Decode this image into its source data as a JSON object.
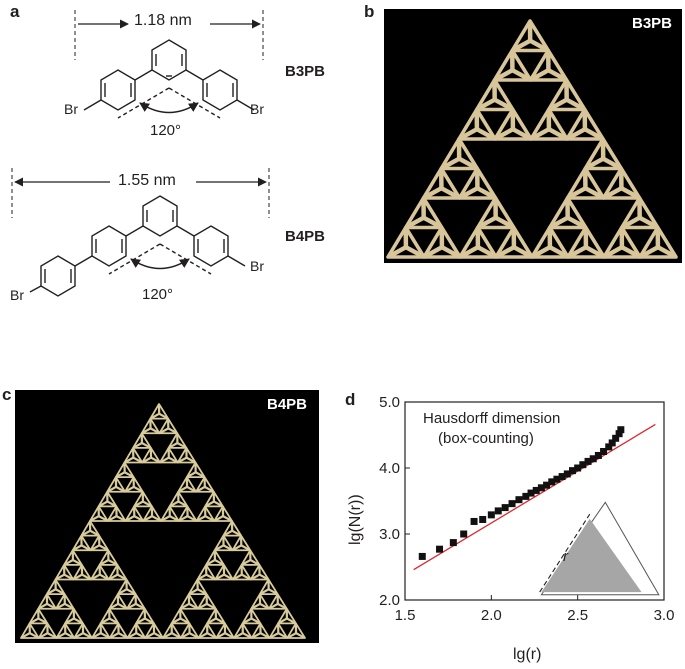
{
  "panels": {
    "a": "a",
    "b": "b",
    "c": "c",
    "d": "d"
  },
  "molecules": [
    {
      "name": "B3PB",
      "length": "1.18 nm",
      "angle": "120°",
      "halogen": "Br"
    },
    {
      "name": "B4PB",
      "length": "1.55 nm",
      "angle": "120°",
      "halogen": "Br"
    }
  ],
  "stm_images": {
    "b_label": "B3PB",
    "c_label": "B4PB"
  },
  "chart_data": {
    "type": "scatter",
    "annotation_line1": "Hausdorff dimension",
    "annotation_line2": "(box-counting)",
    "xlabel": "lg(r)",
    "ylabel": "lg(N(r))",
    "xlim": [
      1.5,
      3.0
    ],
    "ylim": [
      2.0,
      5.0
    ],
    "xticks": [
      "1.5",
      "2.0",
      "2.5",
      "3.0"
    ],
    "yticks": [
      "2.0",
      "3.0",
      "4.0",
      "5.0"
    ],
    "inset_label": "r",
    "points": [
      [
        1.6,
        2.66
      ],
      [
        1.7,
        2.77
      ],
      [
        1.78,
        2.87
      ],
      [
        1.84,
        3.0
      ],
      [
        1.9,
        3.19
      ],
      [
        1.95,
        3.22
      ],
      [
        2.0,
        3.29
      ],
      [
        2.04,
        3.35
      ],
      [
        2.08,
        3.4
      ],
      [
        2.12,
        3.46
      ],
      [
        2.16,
        3.52
      ],
      [
        2.2,
        3.57
      ],
      [
        2.23,
        3.62
      ],
      [
        2.26,
        3.66
      ],
      [
        2.29,
        3.7
      ],
      [
        2.32,
        3.74
      ],
      [
        2.35,
        3.79
      ],
      [
        2.38,
        3.83
      ],
      [
        2.41,
        3.87
      ],
      [
        2.44,
        3.91
      ],
      [
        2.47,
        3.96
      ],
      [
        2.5,
        4.0
      ],
      [
        2.53,
        4.05
      ],
      [
        2.56,
        4.1
      ],
      [
        2.59,
        4.14
      ],
      [
        2.62,
        4.19
      ],
      [
        2.65,
        4.25
      ],
      [
        2.68,
        4.32
      ],
      [
        2.7,
        4.38
      ],
      [
        2.72,
        4.45
      ],
      [
        2.74,
        4.52
      ],
      [
        2.75,
        4.58
      ]
    ],
    "fit": {
      "x": [
        1.55,
        2.95
      ],
      "y": [
        2.46,
        4.66
      ]
    },
    "fit_color": "#e0262b",
    "marker_color": "#111111"
  }
}
